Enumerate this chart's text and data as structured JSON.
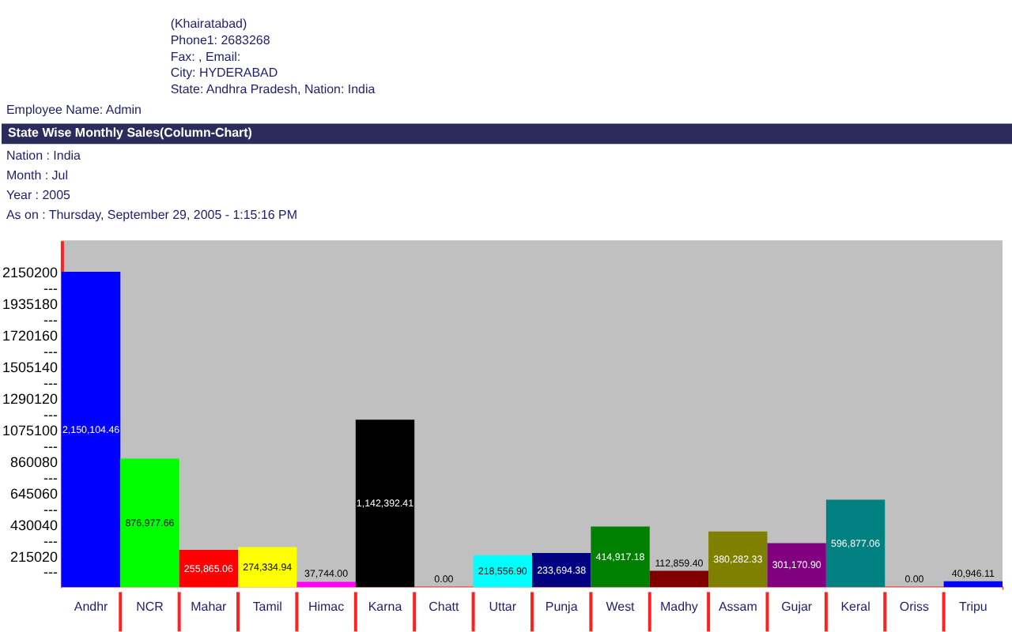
{
  "chart_data": {
    "type": "bar",
    "title": "State Wise Monthly Sales(Column-Chart)",
    "annotations": [
      "(Khairatabad)",
      "Phone1: 2683268",
      "Fax: , Email:",
      "City: HYDERABAD",
      "State: Andhra Pradesh, Nation: India",
      "Employee Name: Admin",
      "Nation : India",
      "Month : Jul",
      "Year : 2005",
      "As on : Thursday, September 29, 2005 - 1:15:16 PM"
    ],
    "categories": [
      "Andhr",
      "NCR",
      "Mahar",
      "Tamil",
      "Himac",
      "Karna",
      "Chatt",
      "Uttar",
      "Punja",
      "West",
      "Madhy",
      "Assam",
      "Gujar",
      "Keral",
      "Oriss",
      "Tripu"
    ],
    "values": [
      2150104.46,
      876977.66,
      255865.06,
      274334.94,
      37744.0,
      1142392.41,
      0,
      218556.9,
      233694.38,
      414917.18,
      112859.4,
      380282.33,
      301170.9,
      596877.06,
      0,
      40946.11
    ],
    "colors": [
      "#0000ff",
      "#00ff00",
      "#ff0000",
      "#ffff00",
      "#ff00ff",
      "#000000",
      "#ffffff",
      "#00ffff",
      "#000080",
      "#008000",
      "#800000",
      "#808000",
      "#800080",
      "#008080",
      "#808080",
      "#0000ff"
    ],
    "value_labels": [
      "2,150,104.46",
      "876,977.66",
      "255,865.06",
      "274,334.94",
      "37,744.00",
      "1,142,392.41",
      "0.00",
      "218,556.90",
      "233,694.38",
      "414,917.18",
      "112,859.40",
      "380,282.33",
      "301,170.90",
      "596,877.06",
      "0.00",
      "40,946.11"
    ],
    "ylim": [
      0,
      2365220
    ],
    "yticks": [
      {
        "value": 107510,
        "label": "---"
      },
      215020,
      {
        "value": 322530,
        "label": "---"
      },
      430040,
      {
        "value": 537550,
        "label": "---"
      },
      645060,
      {
        "value": 752570,
        "label": "---"
      },
      860080,
      {
        "value": 967590,
        "label": "---"
      },
      1075100,
      {
        "value": 1182610,
        "label": "---"
      },
      1290120,
      {
        "value": 1397630,
        "label": "---"
      },
      1505140,
      {
        "value": 1612650,
        "label": "---"
      },
      1720160,
      {
        "value": 1827670,
        "label": "---"
      },
      1935180,
      {
        "value": 2042690,
        "label": "---"
      },
      2150200
    ]
  }
}
